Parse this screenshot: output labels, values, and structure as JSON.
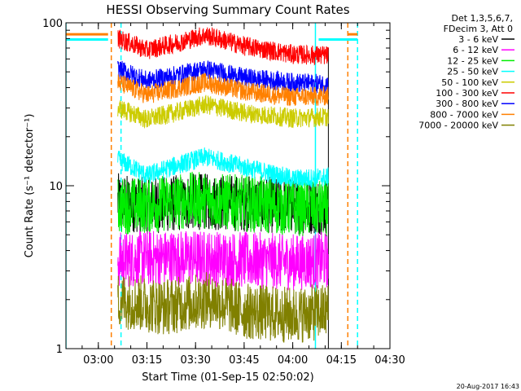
{
  "chart_data": {
    "type": "line",
    "title": "HESSI Observing Summary Count Rates",
    "xlabel": "Start Time (01-Sep-15 02:50:02)",
    "ylabel": "Count Rate (s⁻¹ detector⁻¹)",
    "y_scale": "log",
    "ylim": [
      1,
      100
    ],
    "xlim": [
      "02:50",
      "04:30"
    ],
    "x_ticks": [
      "03:00",
      "03:15",
      "03:30",
      "03:45",
      "04:00",
      "04:15",
      "04:30"
    ],
    "y_ticks": [
      "1",
      "10",
      "100"
    ],
    "grid": false,
    "legend": {
      "placement": "right",
      "header": [
        "Det 1,3,5,6,7,",
        "FDecim 3, Att 0"
      ]
    },
    "series": [
      {
        "name": "3 - 6 keV",
        "color": "#000000",
        "x": [
          "03:06",
          "03:15",
          "03:30",
          "03:45",
          "04:00",
          "04:11"
        ],
        "values": [
          8.0,
          7.5,
          8.0,
          7.8,
          7.5,
          7.5
        ],
        "noisy": true
      },
      {
        "name": "6 - 12 keV",
        "color": "#ff00ff",
        "x": [
          "03:06",
          "03:15",
          "03:30",
          "03:45",
          "04:00",
          "04:11"
        ],
        "values": [
          3.5,
          3.6,
          3.6,
          3.5,
          3.4,
          3.5
        ],
        "noisy": true
      },
      {
        "name": "12 - 25 keV",
        "color": "#00ee00",
        "x": [
          "03:06",
          "03:15",
          "03:30",
          "03:45",
          "04:00",
          "04:11"
        ],
        "values": [
          7.5,
          7.6,
          8.2,
          7.8,
          7.3,
          7.3
        ],
        "noisy": true
      },
      {
        "name": "25 - 50 keV",
        "color": "#00ffff",
        "x": [
          "03:06",
          "03:15",
          "03:25",
          "03:33",
          "03:45",
          "04:00",
          "04:11"
        ],
        "values": [
          14.5,
          11.5,
          13.5,
          15.0,
          13.0,
          11.0,
          11.3
        ]
      },
      {
        "name": "50 - 100 keV",
        "color": "#cccc00",
        "x": [
          "03:06",
          "03:15",
          "03:25",
          "03:33",
          "03:45",
          "04:00",
          "04:11"
        ],
        "values": [
          30.0,
          25.5,
          28.5,
          31.5,
          28.0,
          26.0,
          26.5
        ]
      },
      {
        "name": "100 - 300 keV",
        "color": "#ff0000",
        "x": [
          "03:06",
          "03:15",
          "03:25",
          "03:33",
          "03:45",
          "04:00",
          "04:11"
        ],
        "values": [
          80.0,
          68.0,
          76.0,
          84.0,
          72.0,
          64.0,
          63.0
        ]
      },
      {
        "name": "300 - 800 keV",
        "color": "#0000ff",
        "x": [
          "03:06",
          "03:15",
          "03:25",
          "03:33",
          "03:45",
          "04:00",
          "04:11"
        ],
        "values": [
          52.0,
          44.0,
          48.0,
          52.0,
          46.0,
          43.0,
          42.0
        ]
      },
      {
        "name": "800 - 7000 keV",
        "color": "#ff8000",
        "x": [
          "03:06",
          "03:15",
          "03:25",
          "03:33",
          "03:45",
          "04:00",
          "04:11"
        ],
        "values": [
          43.0,
          36.0,
          40.0,
          43.0,
          38.0,
          35.0,
          35.5
        ]
      },
      {
        "name": "7000 - 20000 keV",
        "color": "#808000",
        "x": [
          "03:06",
          "03:20",
          "03:35",
          "03:45",
          "04:00",
          "04:11"
        ],
        "values": [
          2.0,
          1.8,
          2.0,
          1.7,
          1.6,
          1.7
        ],
        "noisy": true
      }
    ],
    "markers": [
      {
        "kind": "cyan-solid",
        "color": "#00ffff",
        "x": [
          "02:50",
          "04:07"
        ]
      },
      {
        "kind": "cyan-dashed",
        "color": "#00ffff",
        "x": [
          "03:07",
          "04:20"
        ]
      },
      {
        "kind": "orange-dashed",
        "color": "#ff8000",
        "x": [
          "03:04",
          "04:17"
        ]
      },
      {
        "kind": "orange-level",
        "color": "#ff8000",
        "segments": [
          {
            "x": [
              "02:50",
              "03:03"
            ],
            "value": 85
          },
          {
            "x": [
              "04:17",
              "04:20"
            ],
            "value": 85
          }
        ]
      },
      {
        "kind": "cyan-level",
        "color": "#00ffff",
        "segments": [
          {
            "x": [
              "02:50",
              "03:03"
            ],
            "value": 79
          },
          {
            "x": [
              "04:08",
              "04:20"
            ],
            "value": 79
          }
        ]
      }
    ],
    "data_end": "04:11"
  },
  "footer": {
    "timestamp": "20-Aug-2017 16:43"
  }
}
